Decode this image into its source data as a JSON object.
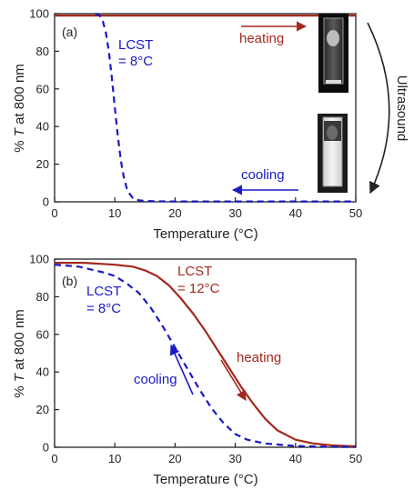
{
  "colors": {
    "heating": "#a4281d",
    "cooling": "#1a1ac4",
    "axis": "#222222"
  },
  "side_label": "Ultrasound",
  "chart_data": [
    {
      "type": "line",
      "panel_label": "(a)",
      "xlabel": "Temperature (°C)",
      "ylabel_prefix": "% ",
      "ylabel_italic": "T",
      "ylabel_suffix": " at 800 nm",
      "xlim": [
        0,
        50
      ],
      "ylim": [
        0,
        100
      ],
      "xticks": [
        0,
        10,
        20,
        30,
        40,
        50
      ],
      "yticks": [
        0,
        20,
        40,
        60,
        80,
        100
      ],
      "annotations": {
        "lcst_line1": "LCST",
        "lcst_line2": "= 8°C",
        "heating": "heating",
        "cooling": "cooling"
      },
      "series": [
        {
          "name": "heating",
          "style": "solid",
          "x": [
            0,
            10,
            20,
            30,
            40,
            50
          ],
          "y": [
            99,
            99,
            99,
            99,
            99,
            99
          ]
        },
        {
          "name": "cooling",
          "style": "dashed",
          "x": [
            6.8,
            7.5,
            8,
            8.5,
            9,
            9.5,
            10,
            10.5,
            11,
            11.5,
            12,
            12.5,
            13,
            13.5,
            14,
            15,
            17,
            20,
            30,
            40,
            50
          ],
          "y": [
            100,
            99,
            96,
            90,
            80,
            66,
            50,
            35,
            22,
            13,
            7,
            4,
            2,
            1.2,
            0.8,
            0.5,
            0.3,
            0.2,
            0.2,
            0.2,
            0.2
          ]
        }
      ]
    },
    {
      "type": "line",
      "panel_label": "(b)",
      "xlabel": "Temperature (°C)",
      "ylabel_prefix": "% ",
      "ylabel_italic": "T",
      "ylabel_suffix": " at 800 nm",
      "xlim": [
        0,
        50
      ],
      "ylim": [
        0,
        100
      ],
      "xticks": [
        0,
        10,
        20,
        30,
        40,
        50
      ],
      "yticks": [
        0,
        20,
        40,
        60,
        80,
        100
      ],
      "annotations": {
        "red_lcst_line1": "LCST",
        "red_lcst_line2": "= 12°C",
        "blue_lcst_line1": "LCST",
        "blue_lcst_line2": "= 8°C",
        "heating": "heating",
        "cooling": "cooling"
      },
      "series": [
        {
          "name": "heating",
          "style": "solid",
          "x": [
            0,
            5,
            10,
            13,
            15,
            17,
            19,
            21,
            23,
            25,
            27,
            29,
            31,
            33,
            35,
            37,
            40,
            43,
            46,
            50
          ],
          "y": [
            98,
            98,
            97,
            96,
            94,
            91,
            86,
            79,
            71,
            62,
            52,
            42,
            32,
            23,
            15,
            9,
            4,
            2,
            1,
            0.5
          ]
        },
        {
          "name": "cooling",
          "style": "dashed",
          "x": [
            0,
            4,
            8,
            10,
            12,
            14,
            16,
            18,
            20,
            22,
            24,
            26,
            28,
            30,
            32,
            35,
            40,
            45,
            50
          ],
          "y": [
            97,
            96,
            93,
            91,
            87,
            82,
            74,
            64,
            53,
            42,
            31,
            21,
            13,
            7,
            4,
            2,
            0.7,
            0.3,
            0.2
          ]
        }
      ]
    }
  ]
}
